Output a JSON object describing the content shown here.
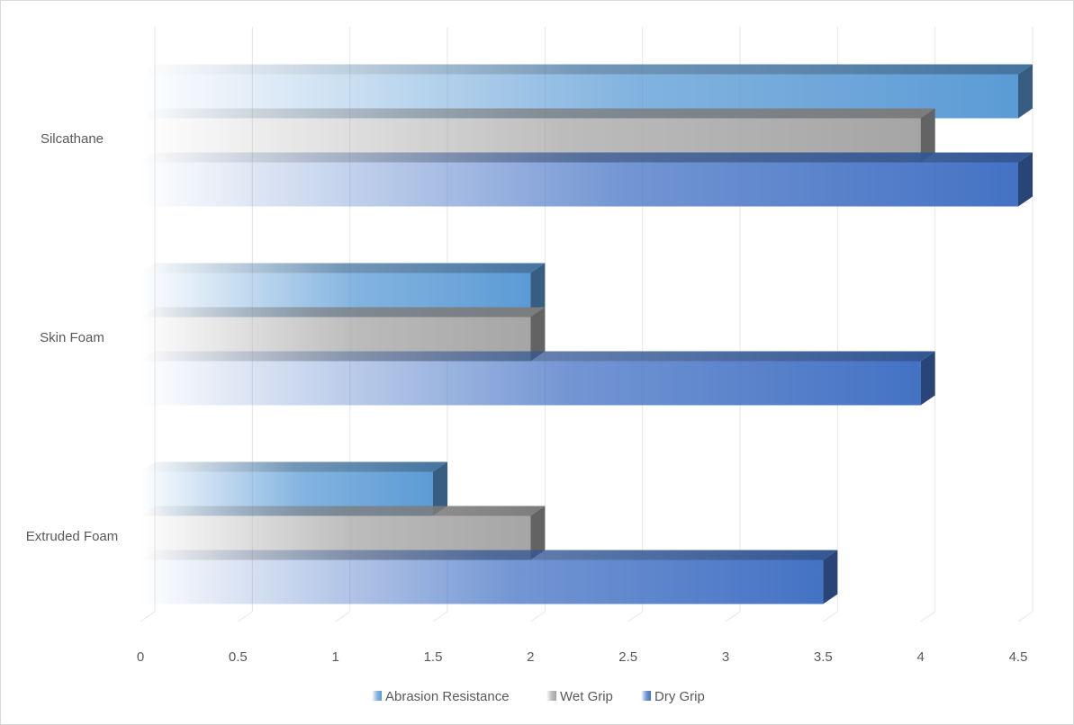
{
  "chart_data": {
    "type": "bar",
    "orientation": "horizontal",
    "style": "3d-gradient",
    "categories": [
      "Extruded Foam",
      "Skin Foam",
      "Silcathane"
    ],
    "series": [
      {
        "name": "Abrasion Resistance",
        "values": [
          1.5,
          2,
          4.5
        ],
        "color": "#5b9bd5"
      },
      {
        "name": "Wet Grip",
        "values": [
          2,
          2,
          4
        ],
        "color": "#a5a5a5"
      },
      {
        "name": "Dry Grip",
        "values": [
          3.5,
          4,
          4.5
        ],
        "color": "#4472c4"
      }
    ],
    "xlim": [
      0,
      4.5
    ],
    "xticks": [
      "0",
      "0.5",
      "1",
      "1.5",
      "2",
      "2.5",
      "3",
      "3.5",
      "4",
      "4.5"
    ],
    "grid": true,
    "legend": "bottom"
  }
}
